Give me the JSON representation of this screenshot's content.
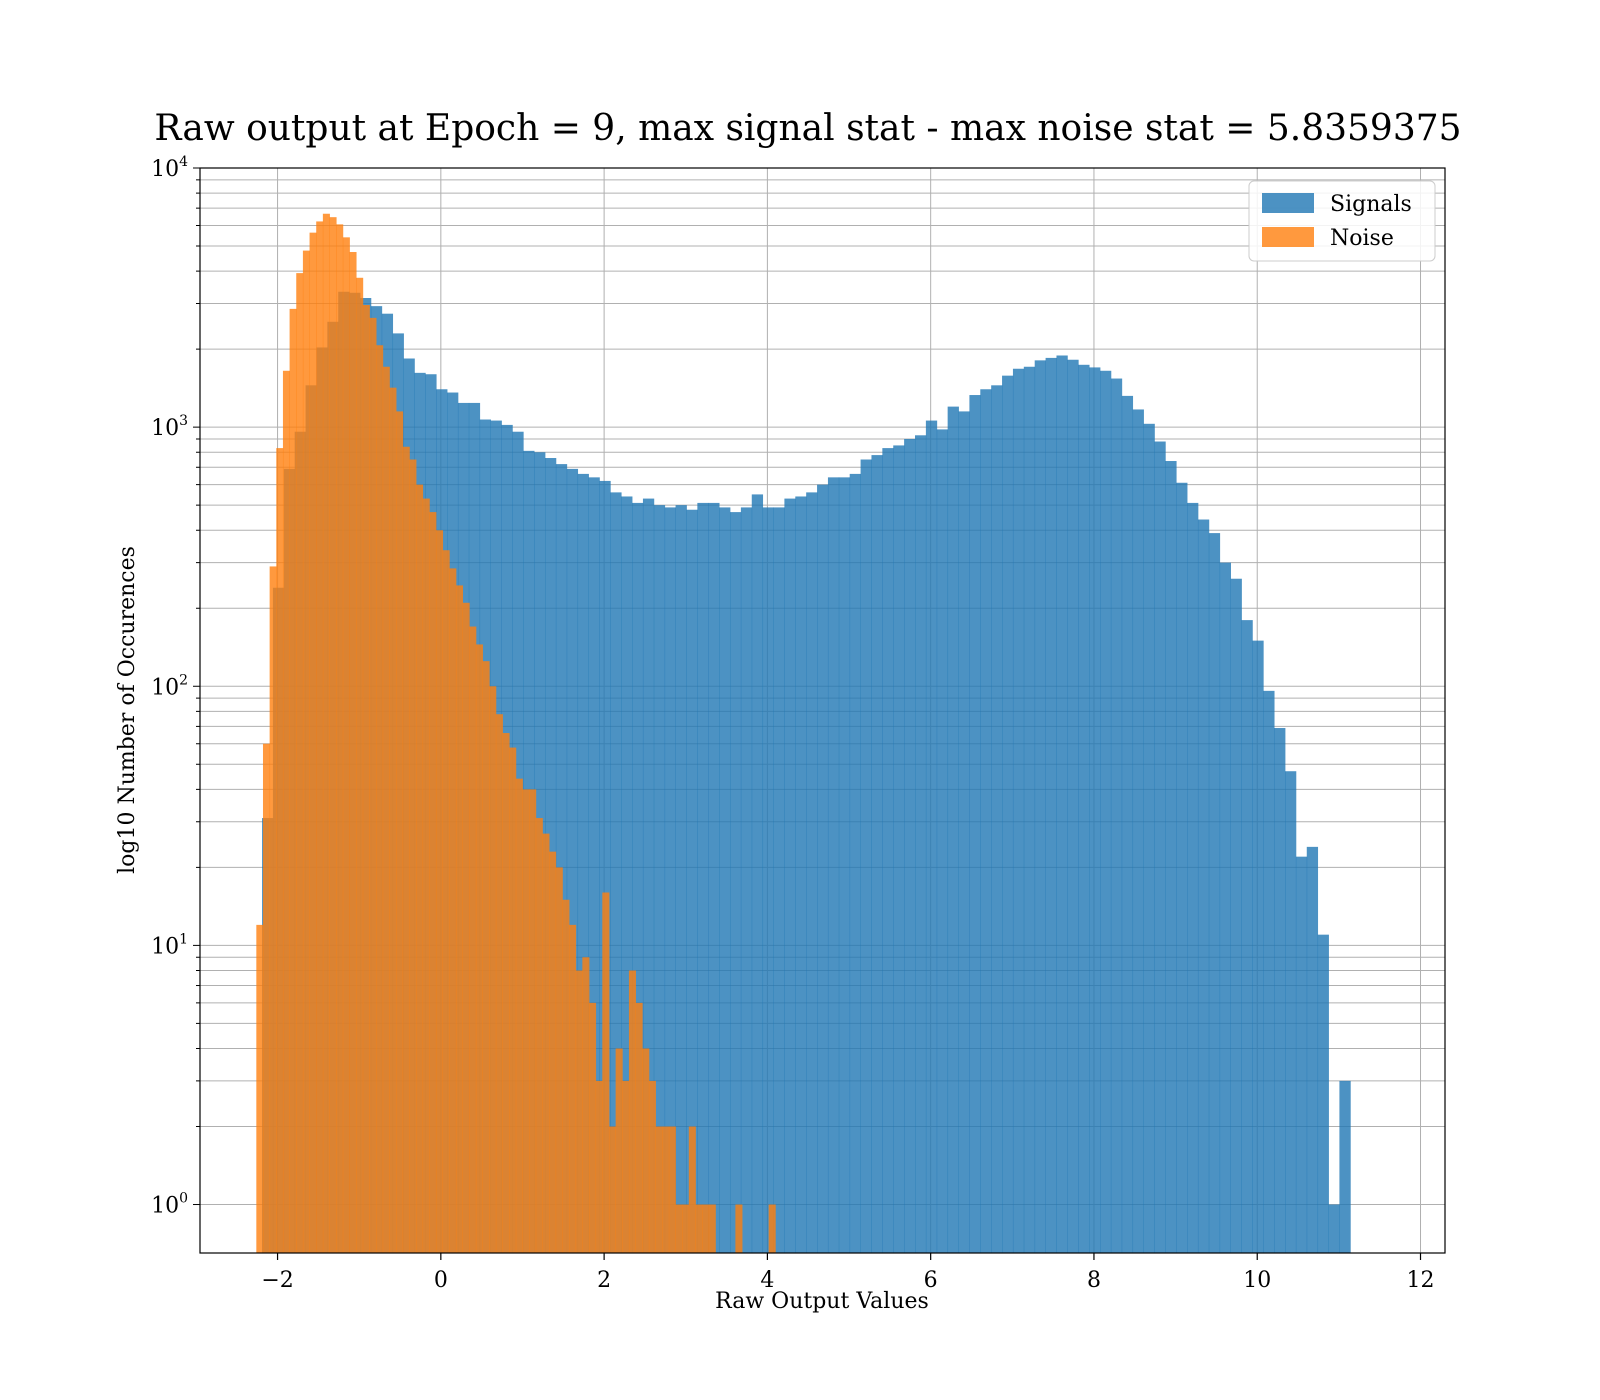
{
  "chart_data": {
    "type": "bar",
    "title": "Raw output at Epoch = 9, max signal stat - max noise stat = 5.8359375",
    "xlabel": "Raw Output Values",
    "ylabel": "log10 Number of Occurences",
    "xlim": [
      -2.95,
      12.3
    ],
    "ylim": [
      0.65,
      10000
    ],
    "yscale": "log",
    "grid": true,
    "legend_position": "top-right",
    "x_ticks": [
      {
        "value": -2,
        "label": "−2"
      },
      {
        "value": 0,
        "label": "0"
      },
      {
        "value": 2,
        "label": "2"
      },
      {
        "value": 4,
        "label": "4"
      },
      {
        "value": 6,
        "label": "6"
      },
      {
        "value": 8,
        "label": "8"
      },
      {
        "value": 10,
        "label": "10"
      },
      {
        "value": 12,
        "label": "12"
      }
    ],
    "y_ticks": [
      {
        "value": 1,
        "base": "10",
        "exp": "0"
      },
      {
        "value": 10,
        "base": "10",
        "exp": "1"
      },
      {
        "value": 100,
        "base": "10",
        "exp": "2"
      },
      {
        "value": 1000,
        "base": "10",
        "exp": "3"
      },
      {
        "value": 10000,
        "base": "10",
        "exp": "4"
      }
    ],
    "series": [
      {
        "name": "Signals",
        "color": "#1f77b4",
        "bin_start": -2.19,
        "bin_width": 0.1333,
        "values": [
          31,
          240,
          690,
          960,
          1450,
          2030,
          2550,
          3330,
          3300,
          3150,
          2930,
          2740,
          2300,
          1840,
          1620,
          1600,
          1400,
          1360,
          1240,
          1240,
          1070,
          1060,
          1020,
          960,
          810,
          800,
          760,
          720,
          690,
          660,
          640,
          620,
          560,
          540,
          510,
          530,
          500,
          490,
          500,
          480,
          510,
          510,
          490,
          470,
          490,
          550,
          490,
          490,
          530,
          540,
          560,
          600,
          640,
          640,
          660,
          750,
          780,
          830,
          850,
          900,
          930,
          1060,
          980,
          1200,
          1150,
          1330,
          1400,
          1450,
          1580,
          1680,
          1710,
          1810,
          1850,
          1890,
          1820,
          1740,
          1700,
          1650,
          1540,
          1320,
          1170,
          1030,
          880,
          740,
          610,
          510,
          440,
          390,
          300,
          260,
          180,
          150,
          96,
          69,
          47,
          22,
          24,
          11,
          1,
          3
        ]
      },
      {
        "name": "Noise",
        "color": "#ff7f0e",
        "bin_start": -2.26,
        "bin_width": 0.0815,
        "values": [
          12,
          60,
          290,
          830,
          1650,
          2860,
          3930,
          4800,
          5630,
          6220,
          6660,
          6460,
          6060,
          5400,
          4740,
          3770,
          2960,
          2640,
          2070,
          1710,
          1420,
          1150,
          840,
          750,
          600,
          530,
          470,
          400,
          335,
          285,
          245,
          210,
          170,
          145,
          125,
          100,
          78,
          66,
          58,
          44,
          40,
          40,
          31,
          27,
          23,
          20,
          15,
          12,
          8,
          9,
          6,
          3,
          16,
          2,
          4,
          3,
          8,
          6,
          4,
          3,
          2,
          2,
          2,
          1,
          1,
          2,
          1,
          1,
          1,
          0,
          0,
          0,
          1,
          0,
          0,
          0,
          0,
          1
        ]
      }
    ]
  }
}
